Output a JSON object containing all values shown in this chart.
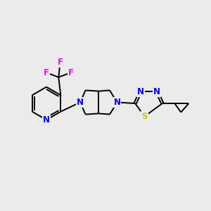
{
  "background_color": "#ebebeb",
  "bond_color": "#000000",
  "atom_colors": {
    "N": "#0000ff",
    "S": "#cccc00",
    "F": "#ff00ff",
    "C": "#000000"
  },
  "figsize": [
    3.0,
    3.0
  ],
  "dpi": 100,
  "xlim": [
    0,
    10
  ],
  "ylim": [
    0,
    10
  ]
}
